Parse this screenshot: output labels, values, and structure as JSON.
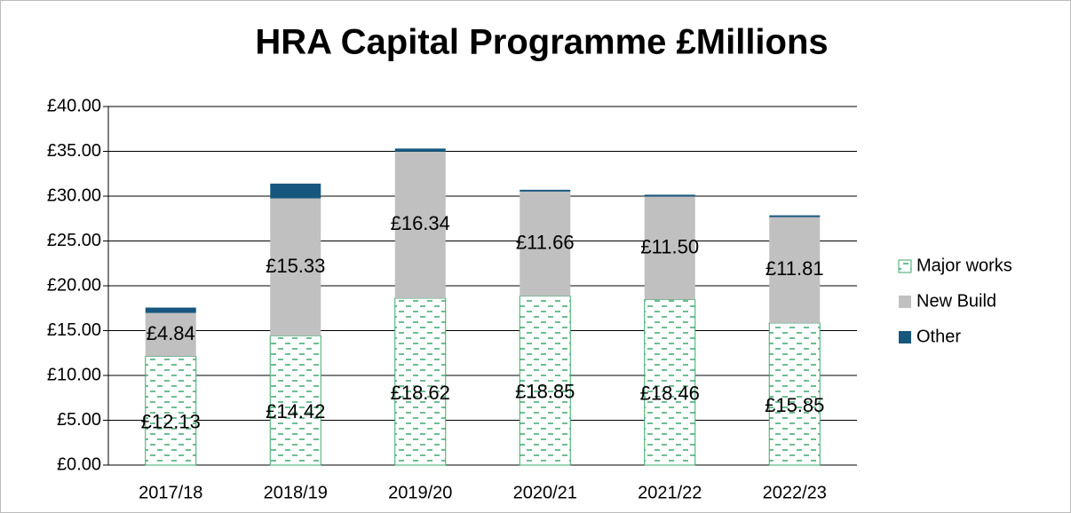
{
  "chart_data": {
    "type": "stacked_bar",
    "title": "HRA Capital Programme £Millions",
    "categories": [
      "2017/18",
      "2018/19",
      "2019/20",
      "2020/21",
      "2021/22",
      "2022/23"
    ],
    "series": [
      {
        "name": "Major works",
        "color": "#3aa86b",
        "pattern": "dash",
        "values": [
          12.13,
          14.42,
          18.62,
          18.85,
          18.46,
          15.85
        ],
        "value_labels": [
          "£12.13",
          "£14.42",
          "£18.62",
          "£18.85",
          "£18.46",
          "£15.85"
        ]
      },
      {
        "name": "New Build",
        "color": "#c0c0c0",
        "values": [
          4.84,
          15.33,
          16.34,
          11.66,
          11.5,
          11.81
        ],
        "value_labels": [
          "£4.84",
          "£15.33",
          "£16.34",
          "£11.66",
          "£11.50",
          "£11.81"
        ]
      },
      {
        "name": "Other",
        "color": "#17577f",
        "values": [
          0.6,
          1.65,
          0.35,
          0.2,
          0.2,
          0.2
        ]
      }
    ],
    "ylim": [
      0,
      40
    ],
    "yticks": [
      {
        "value": 0,
        "label": "£0.00"
      },
      {
        "value": 5,
        "label": "£5.00"
      },
      {
        "value": 10,
        "label": "£10.00"
      },
      {
        "value": 15,
        "label": "£15.00"
      },
      {
        "value": 20,
        "label": "£20.00"
      },
      {
        "value": 25,
        "label": "£25.00"
      },
      {
        "value": 30,
        "label": "£30.00"
      },
      {
        "value": 35,
        "label": "£35.00"
      },
      {
        "value": 40,
        "label": "£40.00"
      }
    ],
    "grid": true,
    "legend": "right"
  }
}
